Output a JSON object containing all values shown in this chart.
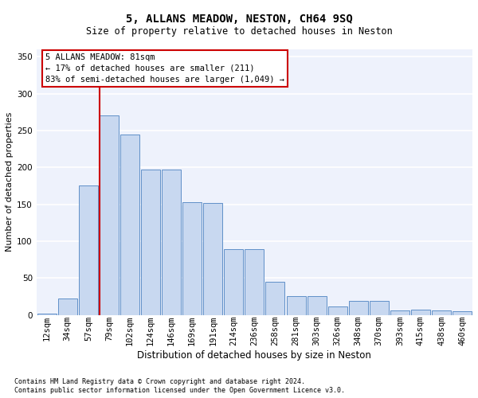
{
  "title": "5, ALLANS MEADOW, NESTON, CH64 9SQ",
  "subtitle": "Size of property relative to detached houses in Neston",
  "xlabel": "Distribution of detached houses by size in Neston",
  "ylabel": "Number of detached properties",
  "footnote1": "Contains HM Land Registry data © Crown copyright and database right 2024.",
  "footnote2": "Contains public sector information licensed under the Open Government Licence v3.0.",
  "annotation_line1": "5 ALLANS MEADOW: 81sqm",
  "annotation_line2": "← 17% of detached houses are smaller (211)",
  "annotation_line3": "83% of semi-detached houses are larger (1,049) →",
  "bar_color": "#c8d8f0",
  "bar_edge_color": "#6090c8",
  "vline_color": "#cc0000",
  "vline_x": 2.55,
  "categories": [
    "12sqm",
    "34sqm",
    "57sqm",
    "79sqm",
    "102sqm",
    "124sqm",
    "146sqm",
    "169sqm",
    "191sqm",
    "214sqm",
    "236sqm",
    "258sqm",
    "281sqm",
    "303sqm",
    "326sqm",
    "348sqm",
    "370sqm",
    "393sqm",
    "415sqm",
    "438sqm",
    "460sqm"
  ],
  "values": [
    2,
    22,
    175,
    270,
    245,
    197,
    197,
    153,
    152,
    89,
    89,
    45,
    25,
    25,
    11,
    19,
    19,
    6,
    7,
    6,
    5
  ],
  "ylim": [
    0,
    360
  ],
  "yticks": [
    0,
    50,
    100,
    150,
    200,
    250,
    300,
    350
  ],
  "bg_color": "#eef2fc",
  "grid_color": "#ffffff",
  "annotation_box_color": "#ffffff",
  "annotation_box_edge": "#cc0000",
  "title_fontsize": 10,
  "subtitle_fontsize": 8.5,
  "ylabel_fontsize": 8,
  "xlabel_fontsize": 8.5,
  "tick_fontsize": 7.5,
  "annot_fontsize": 7.5,
  "footnote_fontsize": 6
}
